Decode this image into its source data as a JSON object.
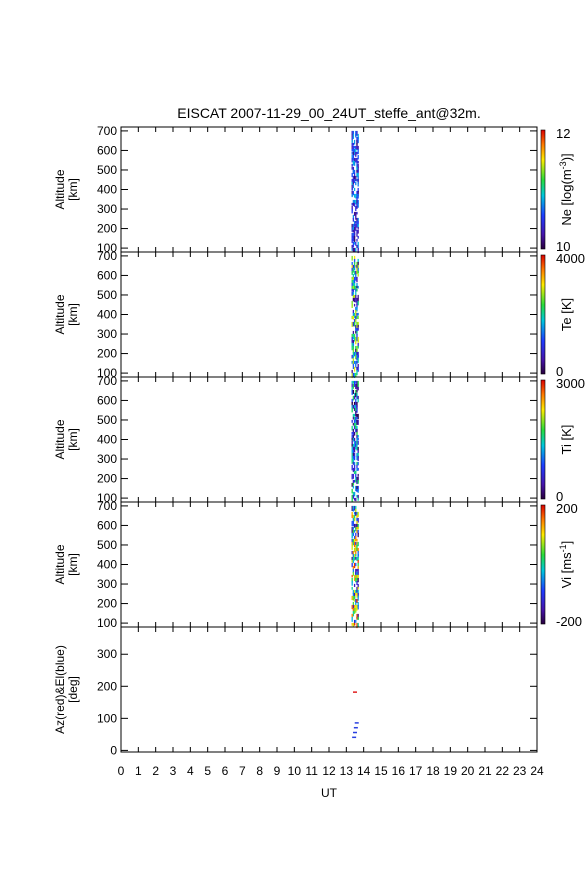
{
  "title": "EISCAT 2007-11-29_00_24UT_steffe_ant@32m.",
  "chart_data": {
    "type": "heatmap",
    "xlabel": "UT",
    "xlim": [
      0,
      24
    ],
    "x_ticks": [
      "0",
      "1",
      "2",
      "3",
      "4",
      "5",
      "6",
      "7",
      "8",
      "9",
      "10",
      "11",
      "12",
      "13",
      "14",
      "15",
      "16",
      "17",
      "18",
      "19",
      "20",
      "21",
      "22",
      "23",
      "24"
    ],
    "data_time_range": [
      13.3,
      13.7
    ],
    "panels": [
      {
        "name": "ne",
        "ylabel": [
          "Altitude",
          "[km]"
        ],
        "ylim": [
          80,
          720
        ],
        "y_ticks": [
          100,
          200,
          300,
          400,
          500,
          600,
          700
        ],
        "colorbar": {
          "label": "Ne [log(m",
          "label_sup": "-3",
          "label_end": ")]",
          "min": "10",
          "max": "12"
        }
      },
      {
        "name": "te",
        "ylabel": [
          "Altitude",
          "[km]"
        ],
        "ylim": [
          80,
          720
        ],
        "y_ticks": [
          100,
          200,
          300,
          400,
          500,
          600,
          700
        ],
        "colorbar": {
          "label": "Te [K]",
          "label_sup": "",
          "label_end": "",
          "min": "0",
          "max": "4000"
        }
      },
      {
        "name": "ti",
        "ylabel": [
          "Altitude",
          "[km]"
        ],
        "ylim": [
          80,
          720
        ],
        "y_ticks": [
          100,
          200,
          300,
          400,
          500,
          600,
          700
        ],
        "colorbar": {
          "label": "Ti [K]",
          "label_sup": "",
          "label_end": "",
          "min": "0",
          "max": "3000"
        }
      },
      {
        "name": "vi",
        "ylabel": [
          "Altitude",
          "[km]"
        ],
        "ylim": [
          80,
          720
        ],
        "y_ticks": [
          100,
          200,
          300,
          400,
          500,
          600,
          700
        ],
        "colorbar": {
          "label": "Vi [ms",
          "label_sup": "-1",
          "label_end": "]",
          "min": "-200",
          "max": "200"
        }
      },
      {
        "name": "azel",
        "ylabel": [
          "Az(red)&El(blue)",
          "[deg]"
        ],
        "ylim": [
          -5,
          385
        ],
        "y_ticks": [
          0,
          100,
          200,
          300
        ],
        "series": [
          {
            "name": "Az",
            "color": "#e02020",
            "points": [
              [
                13.5,
                181
              ]
            ]
          },
          {
            "name": "El",
            "color": "#2a40e0",
            "points": [
              [
                13.45,
                40
              ],
              [
                13.5,
                55
              ],
              [
                13.55,
                70
              ],
              [
                13.6,
                85
              ]
            ]
          }
        ]
      }
    ]
  }
}
